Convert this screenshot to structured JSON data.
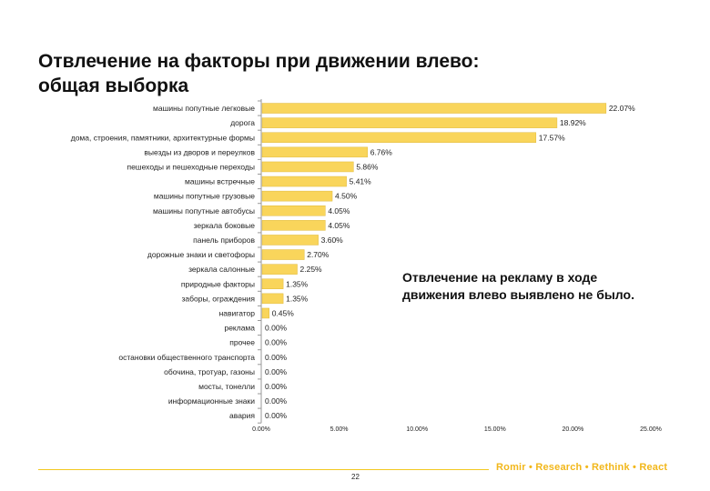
{
  "title": {
    "line1": "Отвлечение на факторы при движении влево:",
    "line2": "общая выборка"
  },
  "note": "Отвлечение на рекламу в ходе движения влево выявлено не было.",
  "footer": {
    "slogan": "Romir • Research • Rethink • React",
    "page_number": "22"
  },
  "colors": {
    "bar": "#f9d55b",
    "bar_stroke": "#e0b93c",
    "accent": "#f2b71a"
  },
  "chart_data": {
    "type": "bar",
    "orientation": "horizontal",
    "title": "Отвлечение на факторы при движении влево: общая выборка",
    "xlabel": "",
    "ylabel": "",
    "xlim": [
      0,
      25
    ],
    "grid": false,
    "legend": "none",
    "x_ticks": [
      "0.00%",
      "5.00%",
      "10.00%",
      "15.00%",
      "20.00%",
      "25.00%"
    ],
    "categories": [
      "машины попутные легковые",
      "дорога",
      "дома, строения, памятники, архитектурные формы",
      "выезды из дворов и переулков",
      "пешеходы и пешеходные переходы",
      "машины встречные",
      "машины попутные грузовые",
      "машины попутные автобусы",
      "зеркала боковые",
      "панель приборов",
      "дорожные знаки и светофоры",
      "зеркала салонные",
      "природные факторы",
      "заборы, ограждения",
      "навигатор",
      "реклама",
      "прочее",
      "остановки общественного транспорта",
      "обочина, тротуар, газоны",
      "мосты, тонелли",
      "информационные знаки",
      "авария"
    ],
    "values": [
      22.07,
      18.92,
      17.57,
      6.76,
      5.86,
      5.41,
      4.5,
      4.05,
      4.05,
      3.6,
      2.7,
      2.25,
      1.35,
      1.35,
      0.45,
      0,
      0,
      0,
      0,
      0,
      0,
      0
    ],
    "value_labels": [
      "22.07%",
      "18.92%",
      "17.57%",
      "6.76%",
      "5.86%",
      "5.41%",
      "4.50%",
      "4.05%",
      "4.05%",
      "3.60%",
      "2.70%",
      "2.25%",
      "1.35%",
      "1.35%",
      "0.45%",
      "0.00%",
      "0.00%",
      "0.00%",
      "0.00%",
      "0.00%",
      "0.00%",
      "0.00%"
    ]
  }
}
